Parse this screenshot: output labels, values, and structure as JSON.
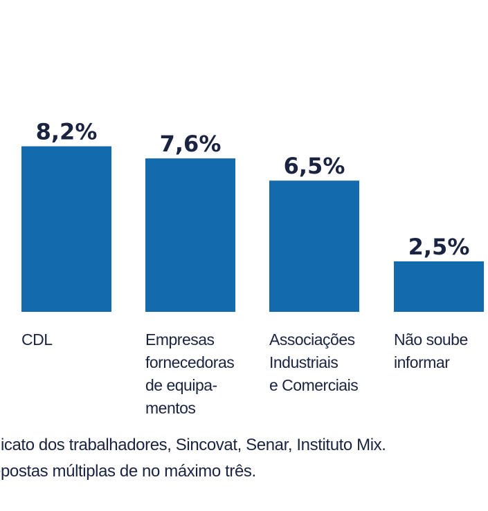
{
  "chart_data": {
    "type": "bar",
    "categories": [
      [
        "CDL"
      ],
      [
        "Empresas",
        "fornecedoras",
        "de equipa-",
        "mentos"
      ],
      [
        "Associações",
        "Industriais",
        "e Comerciais"
      ],
      [
        "Não soube",
        "informar"
      ]
    ],
    "values": [
      8.2,
      7.6,
      6.5,
      2.5
    ],
    "value_labels": [
      "8,2%",
      "7,6%",
      "6,5%",
      "2,5%"
    ],
    "ylim": [
      0,
      10
    ],
    "bar_color": "#136bad",
    "title": "",
    "xlabel": "",
    "ylabel": ""
  },
  "notes": [
    "dicato dos trabalhadores, Sincovat, Senar, Instituto Mix.",
    "epostas múltiplas de no máximo três."
  ],
  "colors": {
    "text": "#1a2340"
  }
}
